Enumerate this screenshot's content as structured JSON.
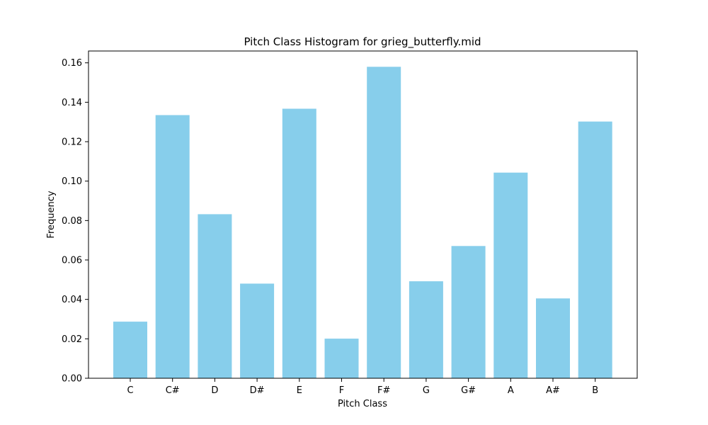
{
  "chart_data": {
    "type": "bar",
    "title": "Pitch Class Histogram for grieg_butterfly.mid",
    "xlabel": "Pitch Class",
    "ylabel": "Frequency",
    "categories": [
      "C",
      "C#",
      "D",
      "D#",
      "E",
      "F",
      "F#",
      "G",
      "G#",
      "A",
      "A#",
      "B"
    ],
    "values": [
      0.0287,
      0.1335,
      0.0832,
      0.048,
      0.1367,
      0.0201,
      0.158,
      0.0492,
      0.0671,
      0.1043,
      0.0405,
      0.1302
    ],
    "ylim": [
      0,
      0.166
    ],
    "yticks": [
      0,
      0.02,
      0.04,
      0.06,
      0.08,
      0.1,
      0.12,
      0.14,
      0.16
    ],
    "ytick_labels": [
      "0.00",
      "0.02",
      "0.04",
      "0.06",
      "0.08",
      "0.10",
      "0.12",
      "0.14",
      "0.16"
    ],
    "bar_color": "#87ceeb",
    "grid": false,
    "legend": "none"
  }
}
